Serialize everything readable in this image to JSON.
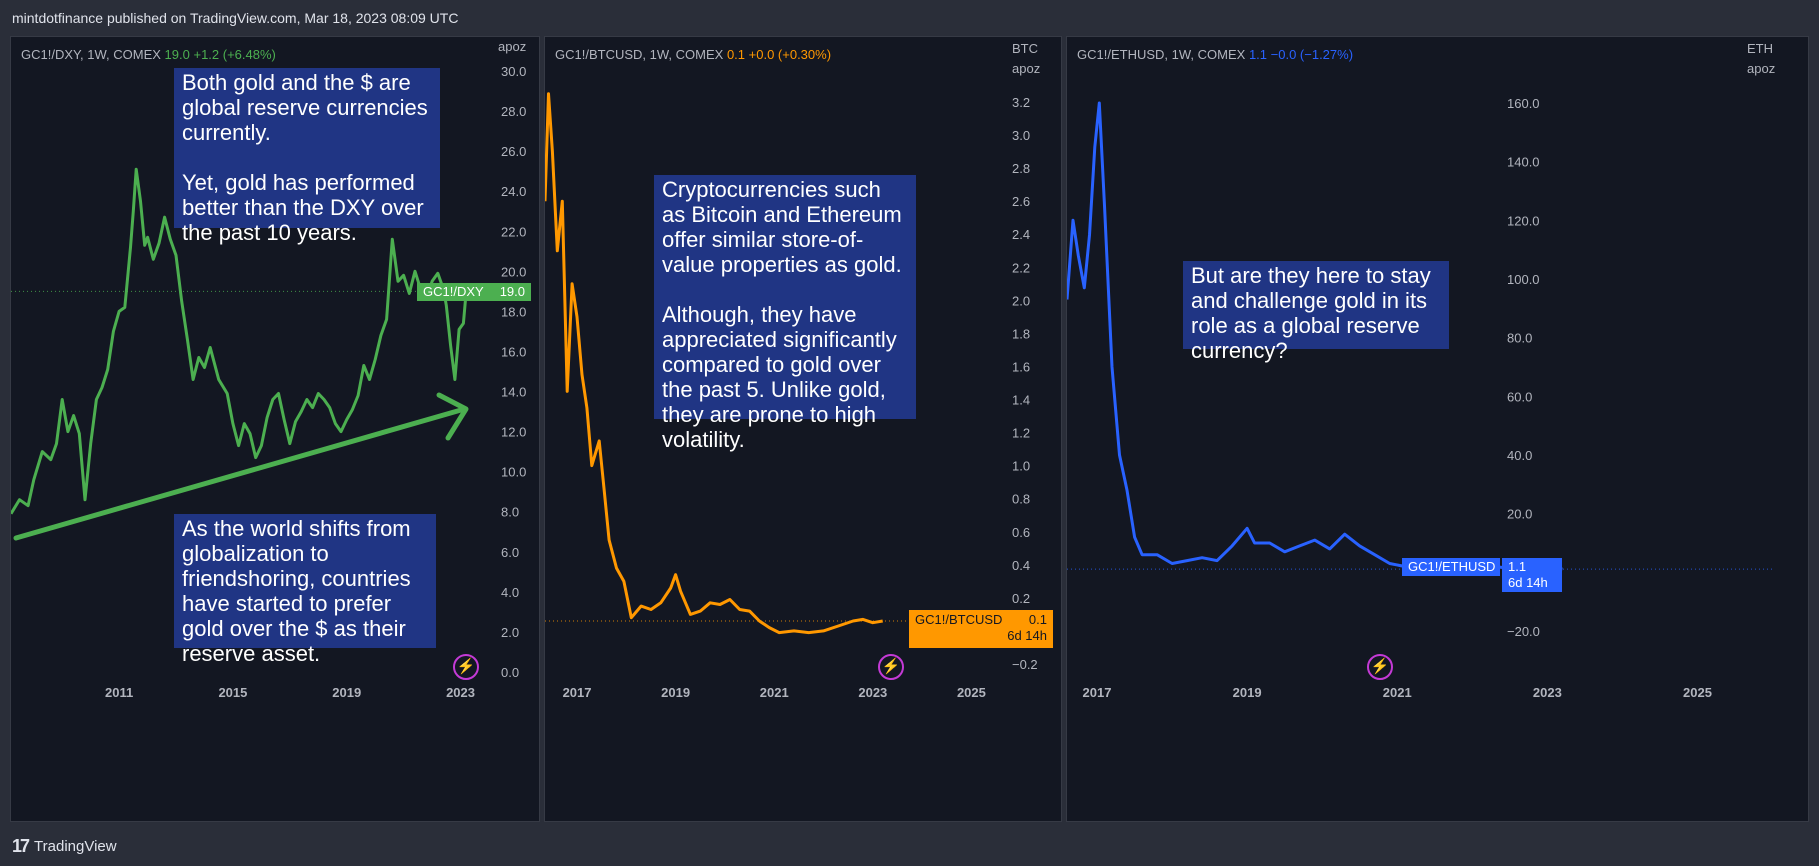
{
  "header": {
    "published_text": "mintdotfinance published on TradingView.com, Mar 18, 2023 08:09 UTC"
  },
  "footer": {
    "brand_mark": "17",
    "brand_name": "TradingView"
  },
  "panels": [
    {
      "symbol_text": "GC1!/DXY, 1W, COMEX",
      "value": "19.0",
      "change": "+1.2 (+6.48%)",
      "unit_lines": [
        "apoz"
      ],
      "series_color": "#4caf50",
      "price_tag_symbol": "GC1!/DXY",
      "price_tag_value": "19.0",
      "notes": [
        "Both gold and the $ are global reserve currencies currently.\n\nYet, gold has performed better than the DXY over the past 10 years.",
        "As the world shifts from globalization to friendshoring, countries have started to prefer gold over the $ as their reserve asset."
      ]
    },
    {
      "symbol_text": "GC1!/BTCUSD, 1W, COMEX",
      "value": "0.1",
      "change": "+0.0 (+0.30%)",
      "unit_lines": [
        "BTC",
        "apoz"
      ],
      "series_color": "#ff9800",
      "price_tag_symbol": "GC1!/BTCUSD",
      "price_tag_value": "0.1",
      "price_tag_countdown": "6d 14h",
      "notes": [
        "Cryptocurrencies such as Bitcoin and Ethereum offer similar store-of-value properties as gold.\n\nAlthough, they have appreciated significantly compared to gold over the past 5. Unlike gold, they are prone to high volatility."
      ]
    },
    {
      "symbol_text": "GC1!/ETHUSD, 1W, COMEX",
      "value": "1.1",
      "change": "−0.0 (−1.27%)",
      "unit_lines": [
        "ETH",
        "apoz"
      ],
      "series_color": "#2962ff",
      "price_tag_symbol": "GC1!/ETHUSD",
      "price_tag_value": "1.1",
      "price_tag_countdown": "6d 14h",
      "notes": [
        "But are they here to stay and challenge gold in its role as a global reserve currency?"
      ]
    }
  ],
  "chart_data": [
    {
      "type": "line",
      "ylim": [
        0.0,
        30.0
      ],
      "y_ticks": [
        "0.0",
        "2.0",
        "4.0",
        "6.0",
        "8.0",
        "10.0",
        "12.0",
        "14.0",
        "16.0",
        "18.0",
        "20.0",
        "22.0",
        "24.0",
        "26.0",
        "28.0",
        "30.0"
      ],
      "x_ticks": [
        "2011",
        "2015",
        "2019",
        "2023"
      ],
      "x_tick_years": [
        2011,
        2015,
        2019,
        2023
      ],
      "xlim": [
        2007.2,
        2024.0
      ],
      "series": [
        {
          "values": [
            [
              2007.2,
              7.9
            ],
            [
              2007.5,
              8.6
            ],
            [
              2007.8,
              8.3
            ],
            [
              2008.0,
              9.6
            ],
            [
              2008.3,
              11.0
            ],
            [
              2008.6,
              10.6
            ],
            [
              2008.8,
              11.4
            ],
            [
              2009.0,
              13.6
            ],
            [
              2009.2,
              12.0
            ],
            [
              2009.4,
              12.8
            ],
            [
              2009.6,
              11.9
            ],
            [
              2009.8,
              8.6
            ],
            [
              2010.0,
              11.4
            ],
            [
              2010.2,
              13.6
            ],
            [
              2010.4,
              14.2
            ],
            [
              2010.6,
              15.1
            ],
            [
              2010.8,
              17.0
            ],
            [
              2011.0,
              18.0
            ],
            [
              2011.2,
              18.2
            ],
            [
              2011.4,
              21.2
            ],
            [
              2011.5,
              23.0
            ],
            [
              2011.6,
              25.1
            ],
            [
              2011.75,
              23.5
            ],
            [
              2011.9,
              21.3
            ],
            [
              2012.0,
              21.7
            ],
            [
              2012.2,
              20.6
            ],
            [
              2012.4,
              21.4
            ],
            [
              2012.6,
              22.7
            ],
            [
              2012.8,
              21.6
            ],
            [
              2013.0,
              20.8
            ],
            [
              2013.2,
              18.5
            ],
            [
              2013.4,
              16.6
            ],
            [
              2013.6,
              14.6
            ],
            [
              2013.8,
              15.7
            ],
            [
              2014.0,
              15.2
            ],
            [
              2014.2,
              16.2
            ],
            [
              2014.5,
              14.6
            ],
            [
              2014.8,
              13.9
            ],
            [
              2015.0,
              12.4
            ],
            [
              2015.2,
              11.3
            ],
            [
              2015.4,
              12.4
            ],
            [
              2015.6,
              11.9
            ],
            [
              2015.8,
              10.7
            ],
            [
              2016.0,
              11.3
            ],
            [
              2016.2,
              12.7
            ],
            [
              2016.4,
              13.6
            ],
            [
              2016.6,
              13.9
            ],
            [
              2016.8,
              12.6
            ],
            [
              2017.0,
              11.4
            ],
            [
              2017.2,
              12.5
            ],
            [
              2017.4,
              13.0
            ],
            [
              2017.6,
              13.6
            ],
            [
              2017.8,
              13.2
            ],
            [
              2018.0,
              13.9
            ],
            [
              2018.2,
              13.6
            ],
            [
              2018.4,
              13.2
            ],
            [
              2018.6,
              12.4
            ],
            [
              2018.8,
              12.0
            ],
            [
              2019.0,
              12.6
            ],
            [
              2019.2,
              13.1
            ],
            [
              2019.4,
              13.8
            ],
            [
              2019.6,
              15.3
            ],
            [
              2019.8,
              14.6
            ],
            [
              2020.0,
              15.6
            ],
            [
              2020.2,
              16.8
            ],
            [
              2020.4,
              17.6
            ],
            [
              2020.6,
              21.6
            ],
            [
              2020.8,
              19.5
            ],
            [
              2021.0,
              19.8
            ],
            [
              2021.2,
              18.9
            ],
            [
              2021.4,
              20.0
            ],
            [
              2021.6,
              19.1
            ],
            [
              2021.8,
              18.6
            ],
            [
              2022.0,
              19.5
            ],
            [
              2022.2,
              19.9
            ],
            [
              2022.4,
              19.1
            ],
            [
              2022.5,
              18.3
            ],
            [
              2022.65,
              16.3
            ],
            [
              2022.8,
              14.6
            ],
            [
              2022.95,
              17.1
            ],
            [
              2023.1,
              17.4
            ],
            [
              2023.2,
              19.0
            ]
          ]
        }
      ]
    },
    {
      "type": "line",
      "ylim": [
        -0.2,
        3.2
      ],
      "y_ticks": [
        "−0.2",
        "0.2",
        "0.4",
        "0.6",
        "0.8",
        "1.0",
        "1.2",
        "1.4",
        "1.6",
        "1.8",
        "2.0",
        "2.2",
        "2.4",
        "2.6",
        "2.8",
        "3.0",
        "3.2"
      ],
      "y_tick_values": [
        -0.2,
        0.2,
        0.4,
        0.6,
        0.8,
        1.0,
        1.2,
        1.4,
        1.6,
        1.8,
        2.0,
        2.2,
        2.4,
        2.6,
        2.8,
        3.0,
        3.2
      ],
      "x_ticks": [
        "2017",
        "2019",
        "2021",
        "2023",
        "2025"
      ],
      "x_tick_years": [
        2017,
        2019,
        2021,
        2023,
        2025
      ],
      "xlim": [
        2016.35,
        2025.6
      ],
      "series": [
        {
          "values": [
            [
              2016.35,
              2.6
            ],
            [
              2016.42,
              3.25
            ],
            [
              2016.5,
              2.9
            ],
            [
              2016.6,
              2.3
            ],
            [
              2016.7,
              2.6
            ],
            [
              2016.8,
              1.45
            ],
            [
              2016.9,
              2.1
            ],
            [
              2017.0,
              1.9
            ],
            [
              2017.1,
              1.55
            ],
            [
              2017.2,
              1.35
            ],
            [
              2017.3,
              1.0
            ],
            [
              2017.45,
              1.15
            ],
            [
              2017.55,
              0.85
            ],
            [
              2017.65,
              0.55
            ],
            [
              2017.8,
              0.38
            ],
            [
              2017.95,
              0.3
            ],
            [
              2018.1,
              0.08
            ],
            [
              2018.3,
              0.15
            ],
            [
              2018.5,
              0.13
            ],
            [
              2018.7,
              0.17
            ],
            [
              2018.9,
              0.26
            ],
            [
              2019.0,
              0.34
            ],
            [
              2019.1,
              0.24
            ],
            [
              2019.3,
              0.1
            ],
            [
              2019.5,
              0.12
            ],
            [
              2019.7,
              0.17
            ],
            [
              2019.9,
              0.16
            ],
            [
              2020.1,
              0.19
            ],
            [
              2020.3,
              0.13
            ],
            [
              2020.5,
              0.12
            ],
            [
              2020.7,
              0.06
            ],
            [
              2020.9,
              0.02
            ],
            [
              2021.1,
              -0.01
            ],
            [
              2021.4,
              0.0
            ],
            [
              2021.7,
              -0.01
            ],
            [
              2022.0,
              0.0
            ],
            [
              2022.3,
              0.03
            ],
            [
              2022.6,
              0.06
            ],
            [
              2022.8,
              0.07
            ],
            [
              2023.0,
              0.05
            ],
            [
              2023.2,
              0.06
            ]
          ]
        }
      ]
    },
    {
      "type": "line",
      "ylim": [
        -20.0,
        160.0
      ],
      "y_ticks": [
        "−20.0",
        "20.0",
        "40.0",
        "60.0",
        "80.0",
        "100.0",
        "120.0",
        "140.0",
        "160.0"
      ],
      "y_tick_values": [
        -20,
        20,
        40,
        60,
        80,
        100,
        120,
        140,
        160
      ],
      "x_ticks": [
        "2017",
        "2019",
        "2021",
        "2023",
        "2025"
      ],
      "x_tick_years": [
        2017,
        2019,
        2021,
        2023,
        2025
      ],
      "xlim": [
        2016.6,
        2025.5
      ],
      "series": [
        {
          "values": [
            [
              2016.6,
              93
            ],
            [
              2016.68,
              120
            ],
            [
              2016.75,
              108
            ],
            [
              2016.83,
              97
            ],
            [
              2016.9,
              115
            ],
            [
              2016.97,
              145
            ],
            [
              2017.03,
              160
            ],
            [
              2017.1,
              125
            ],
            [
              2017.2,
              70
            ],
            [
              2017.3,
              40
            ],
            [
              2017.4,
              28
            ],
            [
              2017.5,
              12
            ],
            [
              2017.6,
              6
            ],
            [
              2017.8,
              6
            ],
            [
              2018.0,
              3
            ],
            [
              2018.2,
              4
            ],
            [
              2018.4,
              5
            ],
            [
              2018.6,
              4
            ],
            [
              2018.8,
              9
            ],
            [
              2019.0,
              15
            ],
            [
              2019.1,
              10
            ],
            [
              2019.3,
              10
            ],
            [
              2019.5,
              7
            ],
            [
              2019.7,
              9
            ],
            [
              2019.9,
              11
            ],
            [
              2020.1,
              8
            ],
            [
              2020.3,
              13
            ],
            [
              2020.5,
              9
            ],
            [
              2020.7,
              6
            ],
            [
              2020.9,
              3
            ],
            [
              2021.1,
              2
            ],
            [
              2021.4,
              1
            ],
            [
              2021.7,
              1
            ],
            [
              2022.0,
              2
            ],
            [
              2022.3,
              2
            ],
            [
              2022.6,
              1
            ],
            [
              2022.8,
              2
            ],
            [
              2023.0,
              2
            ],
            [
              2023.2,
              1.1
            ]
          ]
        }
      ]
    }
  ]
}
